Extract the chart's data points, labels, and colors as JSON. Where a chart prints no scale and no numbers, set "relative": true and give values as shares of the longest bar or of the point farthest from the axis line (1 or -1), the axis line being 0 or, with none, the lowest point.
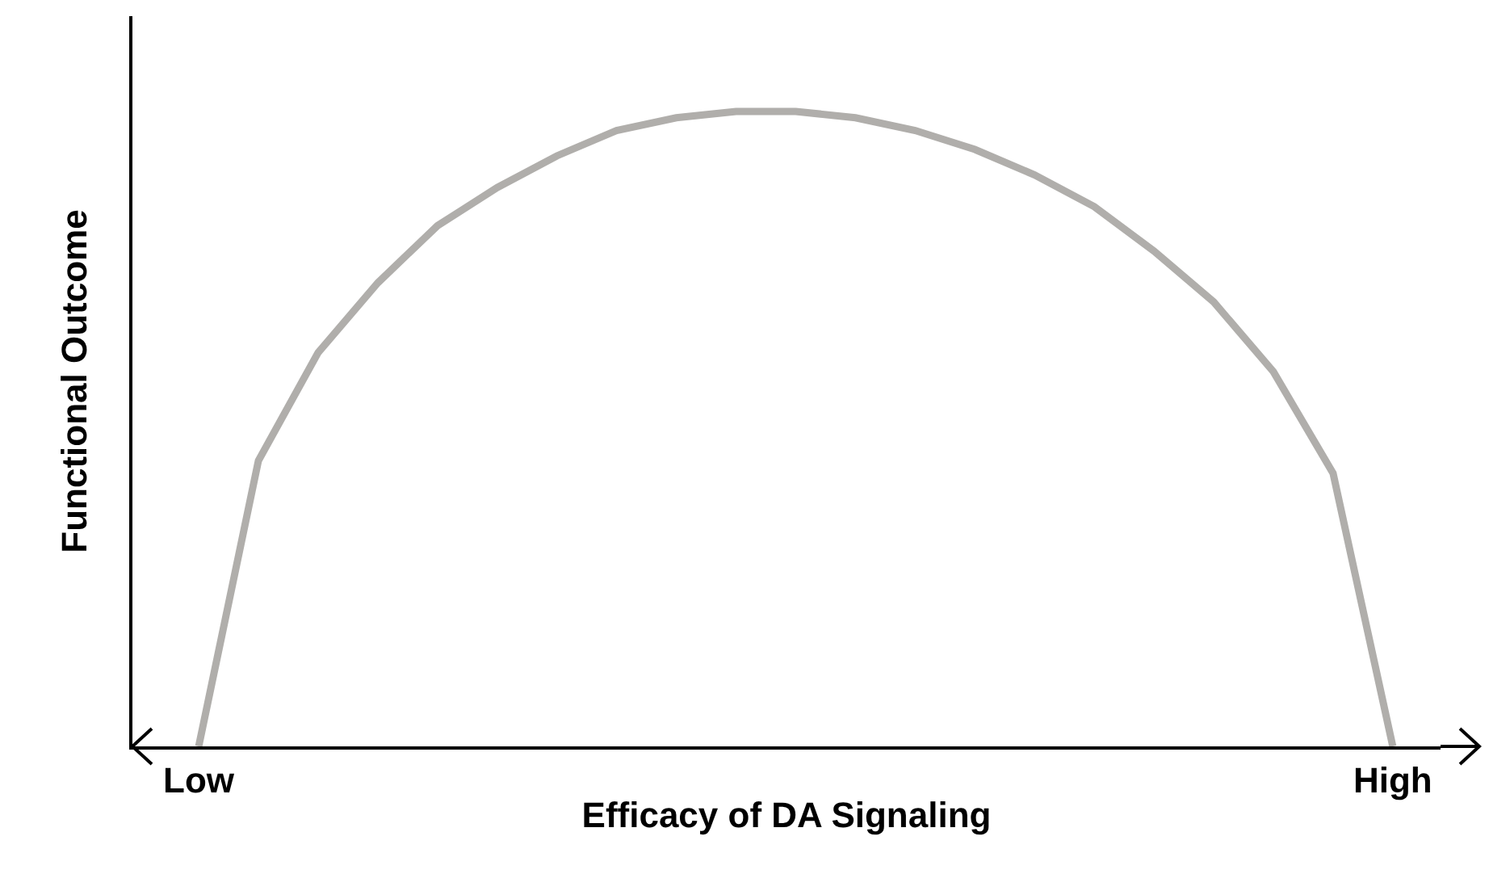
{
  "chart_data": {
    "type": "line",
    "relative": true,
    "xlabel": "Efficacy of DA Signaling",
    "ylabel": "Functional Outcome",
    "categories": [
      "Low",
      null,
      null,
      null,
      null,
      null,
      null,
      null,
      null,
      null,
      null,
      null,
      null,
      null,
      null,
      null,
      null,
      null,
      null,
      null,
      "High"
    ],
    "values": [
      0,
      0.45,
      0.62,
      0.73,
      0.82,
      0.88,
      0.93,
      0.97,
      0.99,
      1,
      1,
      0.99,
      0.97,
      0.94,
      0.9,
      0.85,
      0.78,
      0.7,
      0.59,
      0.43,
      0
    ],
    "color": "#b0aeab",
    "line_style": "solid"
  }
}
